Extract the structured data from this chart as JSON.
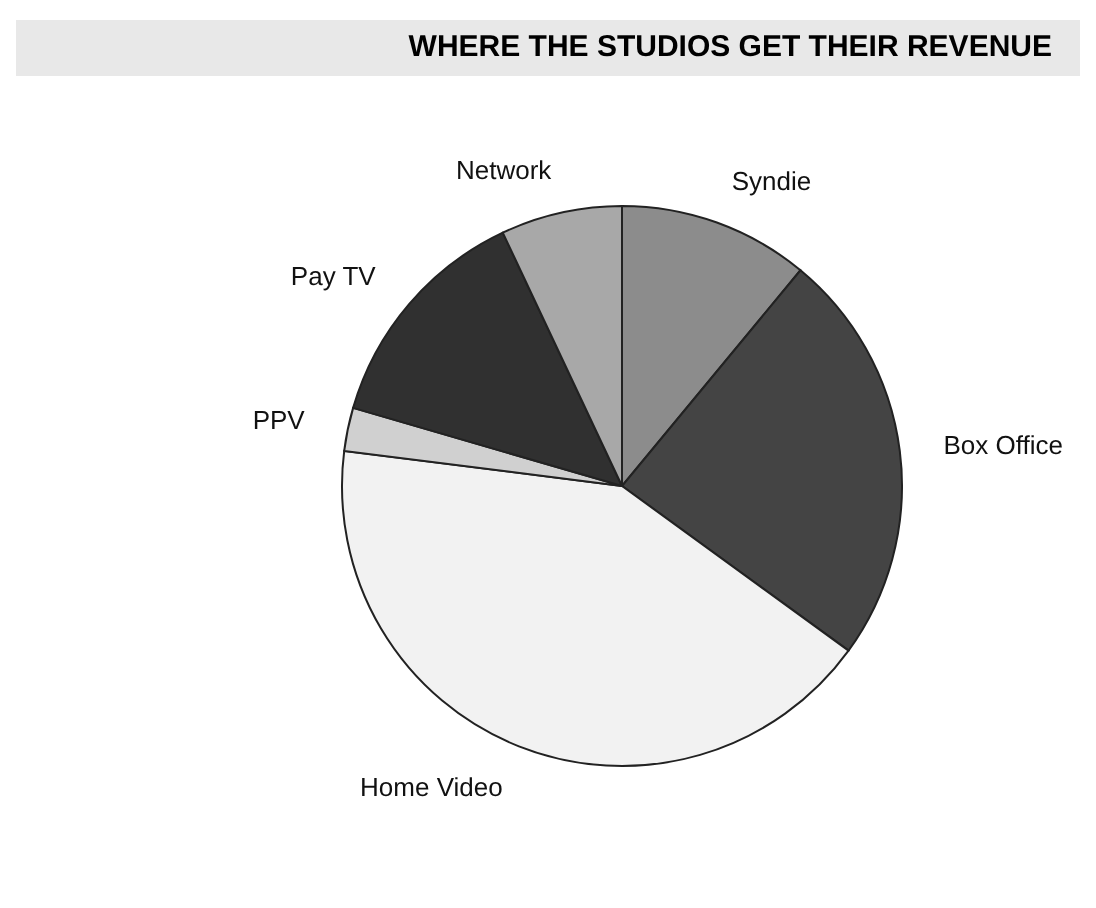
{
  "chart_data": {
    "type": "pie",
    "title": "WHERE THE STUDIOS GET THEIR REVENUE",
    "categories": [
      "Syndie",
      "Box Office",
      "Home Video",
      "PPV",
      "Pay TV",
      "Network"
    ],
    "values": [
      11,
      24,
      42,
      2.5,
      13.5,
      7
    ],
    "colors": [
      "#8c8c8c",
      "#444444",
      "#f2f2f2",
      "#d0d0d0",
      "#303030",
      "#a8a8a8"
    ],
    "legend": false
  }
}
